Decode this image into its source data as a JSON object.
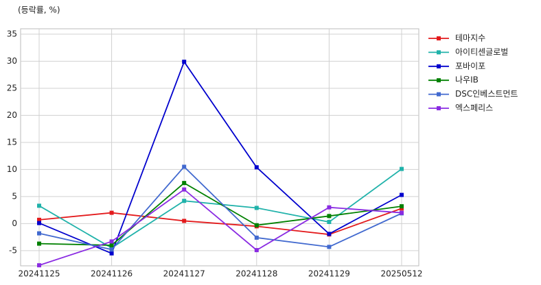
{
  "chart_data": {
    "type": "line",
    "y_label": "(등락률, %)",
    "categories": [
      "20241125",
      "20241126",
      "20241127",
      "20241128",
      "20241129",
      "20250512"
    ],
    "series": [
      {
        "name": "테마지수",
        "color": "#e31a1c",
        "values": [
          0.7,
          2.0,
          0.5,
          -0.5,
          -2.0,
          2.8
        ]
      },
      {
        "name": "아이티센글로벌",
        "color": "#20b2aa",
        "values": [
          3.3,
          -4.5,
          4.2,
          2.9,
          0.3,
          10.1
        ]
      },
      {
        "name": "포바이포",
        "color": "#0000cd",
        "values": [
          0.1,
          -5.5,
          29.9,
          10.4,
          -1.9,
          5.3
        ]
      },
      {
        "name": "나우IB",
        "color": "#008000",
        "values": [
          -3.7,
          -4.0,
          7.5,
          -0.3,
          1.4,
          3.2
        ]
      },
      {
        "name": "DSC인베스트먼트",
        "color": "#4169cf",
        "values": [
          -1.8,
          -4.8,
          10.5,
          -2.6,
          -4.3,
          1.9
        ]
      },
      {
        "name": "엑스페리스",
        "color": "#8a2be2",
        "values": [
          -7.7,
          -3.3,
          6.3,
          -4.9,
          3.0,
          2.0
        ]
      }
    ],
    "ylim": [
      -7.8,
      36
    ],
    "yticks": [
      -5,
      0,
      5,
      10,
      15,
      20,
      25,
      30,
      35
    ],
    "grid": true
  }
}
